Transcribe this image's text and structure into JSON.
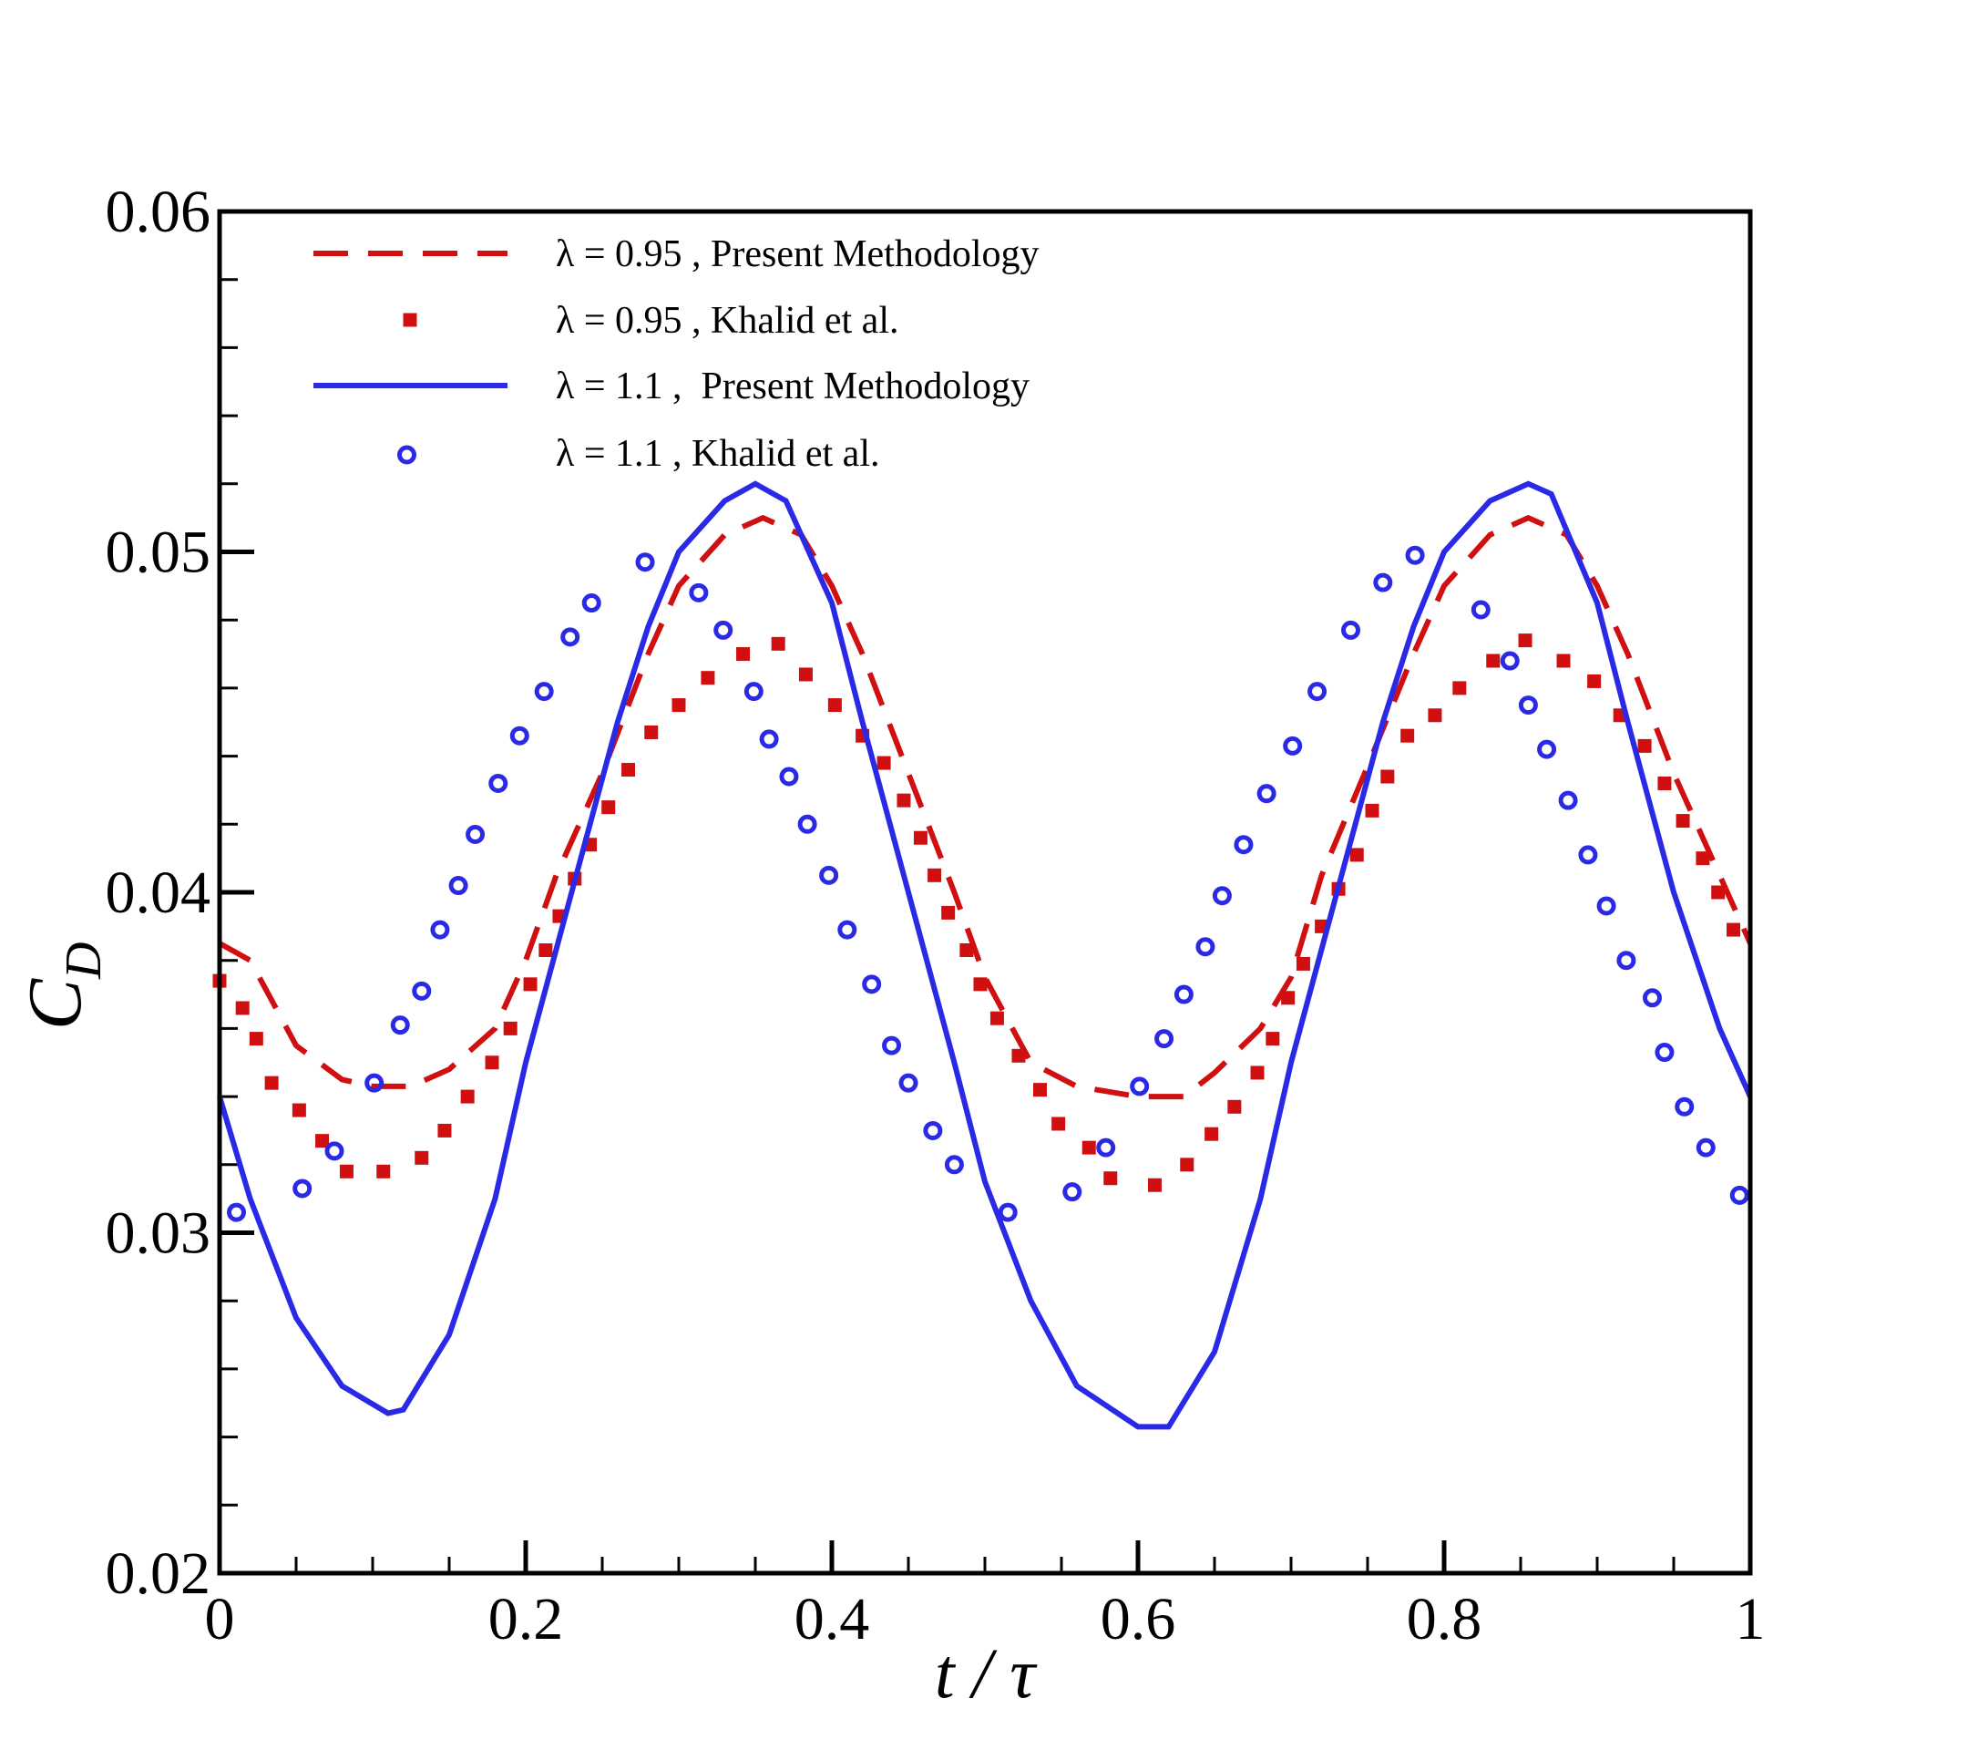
{
  "chart_data": {
    "type": "line",
    "xlabel": "t / τ",
    "ylabel": "C",
    "ylabel_sub": "D",
    "xlim": [
      0,
      1
    ],
    "ylim": [
      0.02,
      0.06
    ],
    "xticks": [
      0,
      0.2,
      0.4,
      0.6,
      0.8,
      1
    ],
    "yticks": [
      0.02,
      0.03,
      0.04,
      0.05,
      0.06
    ],
    "legend": "upper-left",
    "series": [
      {
        "name": "λ = 0.95 , Present Methodology",
        "color": "#d01010",
        "style": "dashed",
        "x": [
          0,
          0.02,
          0.05,
          0.08,
          0.1,
          0.125,
          0.15,
          0.18,
          0.2,
          0.22,
          0.25,
          0.28,
          0.3,
          0.33,
          0.355,
          0.38,
          0.4,
          0.42,
          0.45,
          0.48,
          0.5,
          0.53,
          0.56,
          0.6,
          0.63,
          0.65,
          0.68,
          0.7,
          0.72,
          0.75,
          0.78,
          0.8,
          0.83,
          0.855,
          0.88,
          0.9,
          0.92,
          0.95,
          0.98,
          1.0
        ],
        "values": [
          0.0385,
          0.038,
          0.0355,
          0.0345,
          0.0343,
          0.0343,
          0.0348,
          0.036,
          0.038,
          0.0405,
          0.0435,
          0.047,
          0.049,
          0.0505,
          0.051,
          0.0505,
          0.049,
          0.047,
          0.0435,
          0.04,
          0.0375,
          0.035,
          0.0343,
          0.034,
          0.034,
          0.0347,
          0.036,
          0.0375,
          0.0405,
          0.0437,
          0.047,
          0.049,
          0.0505,
          0.051,
          0.0505,
          0.049,
          0.047,
          0.0435,
          0.0405,
          0.0385
        ]
      },
      {
        "name": "λ = 0.95 , Khalid et al.",
        "color": "#d01010",
        "style": "square",
        "x": [
          0,
          0.015,
          0.024,
          0.034,
          0.052,
          0.067,
          0.083,
          0.107,
          0.132,
          0.147,
          0.162,
          0.178,
          0.19,
          0.203,
          0.213,
          0.222,
          0.232,
          0.242,
          0.254,
          0.267,
          0.282,
          0.3,
          0.319,
          0.342,
          0.365,
          0.383,
          0.402,
          0.42,
          0.434,
          0.447,
          0.458,
          0.467,
          0.476,
          0.488,
          0.497,
          0.508,
          0.522,
          0.536,
          0.548,
          0.568,
          0.582,
          0.611,
          0.632,
          0.648,
          0.663,
          0.678,
          0.688,
          0.698,
          0.708,
          0.72,
          0.731,
          0.743,
          0.753,
          0.763,
          0.776,
          0.794,
          0.81,
          0.832,
          0.853,
          0.878,
          0.898,
          0.915,
          0.931,
          0.944,
          0.956,
          0.969,
          0.979,
          0.989
        ],
        "values": [
          0.0374,
          0.0366,
          0.0357,
          0.0344,
          0.0336,
          0.0327,
          0.0318,
          0.0318,
          0.0322,
          0.033,
          0.034,
          0.035,
          0.036,
          0.0373,
          0.0383,
          0.0393,
          0.0404,
          0.0414,
          0.0425,
          0.0436,
          0.0447,
          0.0455,
          0.0463,
          0.047,
          0.0473,
          0.0464,
          0.0455,
          0.0446,
          0.0438,
          0.0427,
          0.0416,
          0.0405,
          0.0394,
          0.0383,
          0.0373,
          0.0363,
          0.0352,
          0.0342,
          0.0332,
          0.0325,
          0.0316,
          0.0314,
          0.032,
          0.0329,
          0.0337,
          0.0347,
          0.0357,
          0.0369,
          0.0379,
          0.039,
          0.0401,
          0.0411,
          0.0424,
          0.0434,
          0.0446,
          0.0452,
          0.046,
          0.0468,
          0.0474,
          0.0468,
          0.0462,
          0.0452,
          0.0443,
          0.0432,
          0.0421,
          0.041,
          0.04,
          0.0389
        ]
      },
      {
        "name": "λ = 1.1 ,  Present Methodology",
        "color": "#2a2ae6",
        "style": "solid",
        "x": [
          0,
          0.02,
          0.05,
          0.08,
          0.11,
          0.12,
          0.15,
          0.18,
          0.2,
          0.23,
          0.26,
          0.28,
          0.3,
          0.33,
          0.35,
          0.37,
          0.4,
          0.42,
          0.45,
          0.48,
          0.5,
          0.53,
          0.56,
          0.6,
          0.62,
          0.65,
          0.68,
          0.7,
          0.73,
          0.76,
          0.78,
          0.8,
          0.83,
          0.855,
          0.87,
          0.9,
          0.92,
          0.95,
          0.98,
          1.0
        ],
        "values": [
          0.034,
          0.031,
          0.0275,
          0.0255,
          0.0247,
          0.0248,
          0.027,
          0.031,
          0.035,
          0.04,
          0.045,
          0.0478,
          0.05,
          0.0515,
          0.052,
          0.0515,
          0.0485,
          0.045,
          0.04,
          0.035,
          0.0315,
          0.028,
          0.0255,
          0.0243,
          0.0243,
          0.0265,
          0.031,
          0.035,
          0.04,
          0.045,
          0.0478,
          0.05,
          0.0515,
          0.052,
          0.0517,
          0.0485,
          0.045,
          0.04,
          0.036,
          0.034
        ]
      },
      {
        "name": "λ = 1.1 , Khalid et al.",
        "color": "#2a2ae6",
        "style": "circle",
        "x": [
          0.011,
          0.054,
          0.075,
          0.101,
          0.118,
          0.132,
          0.144,
          0.156,
          0.167,
          0.182,
          0.196,
          0.212,
          0.229,
          0.243,
          0.278,
          0.313,
          0.329,
          0.349,
          0.359,
          0.372,
          0.384,
          0.398,
          0.41,
          0.426,
          0.439,
          0.45,
          0.466,
          0.48,
          0.515,
          0.557,
          0.579,
          0.601,
          0.617,
          0.63,
          0.644,
          0.655,
          0.669,
          0.684,
          0.701,
          0.717,
          0.739,
          0.76,
          0.781,
          0.824,
          0.843,
          0.855,
          0.867,
          0.881,
          0.894,
          0.906,
          0.919,
          0.936,
          0.944,
          0.957,
          0.971,
          0.993
        ],
        "values": [
          0.0306,
          0.0313,
          0.0324,
          0.0344,
          0.0361,
          0.0371,
          0.0389,
          0.0402,
          0.0417,
          0.0432,
          0.0446,
          0.0459,
          0.0475,
          0.0485,
          0.0497,
          0.0488,
          0.0477,
          0.0459,
          0.0445,
          0.0434,
          0.042,
          0.0405,
          0.0389,
          0.0373,
          0.0355,
          0.0344,
          0.033,
          0.032,
          0.0306,
          0.0312,
          0.0325,
          0.0343,
          0.0357,
          0.037,
          0.0384,
          0.0399,
          0.0414,
          0.0429,
          0.0443,
          0.0459,
          0.0477,
          0.0491,
          0.0499,
          0.0483,
          0.0468,
          0.0455,
          0.0442,
          0.0427,
          0.0411,
          0.0396,
          0.038,
          0.0369,
          0.0353,
          0.0337,
          0.0325,
          0.0311
        ]
      }
    ]
  }
}
